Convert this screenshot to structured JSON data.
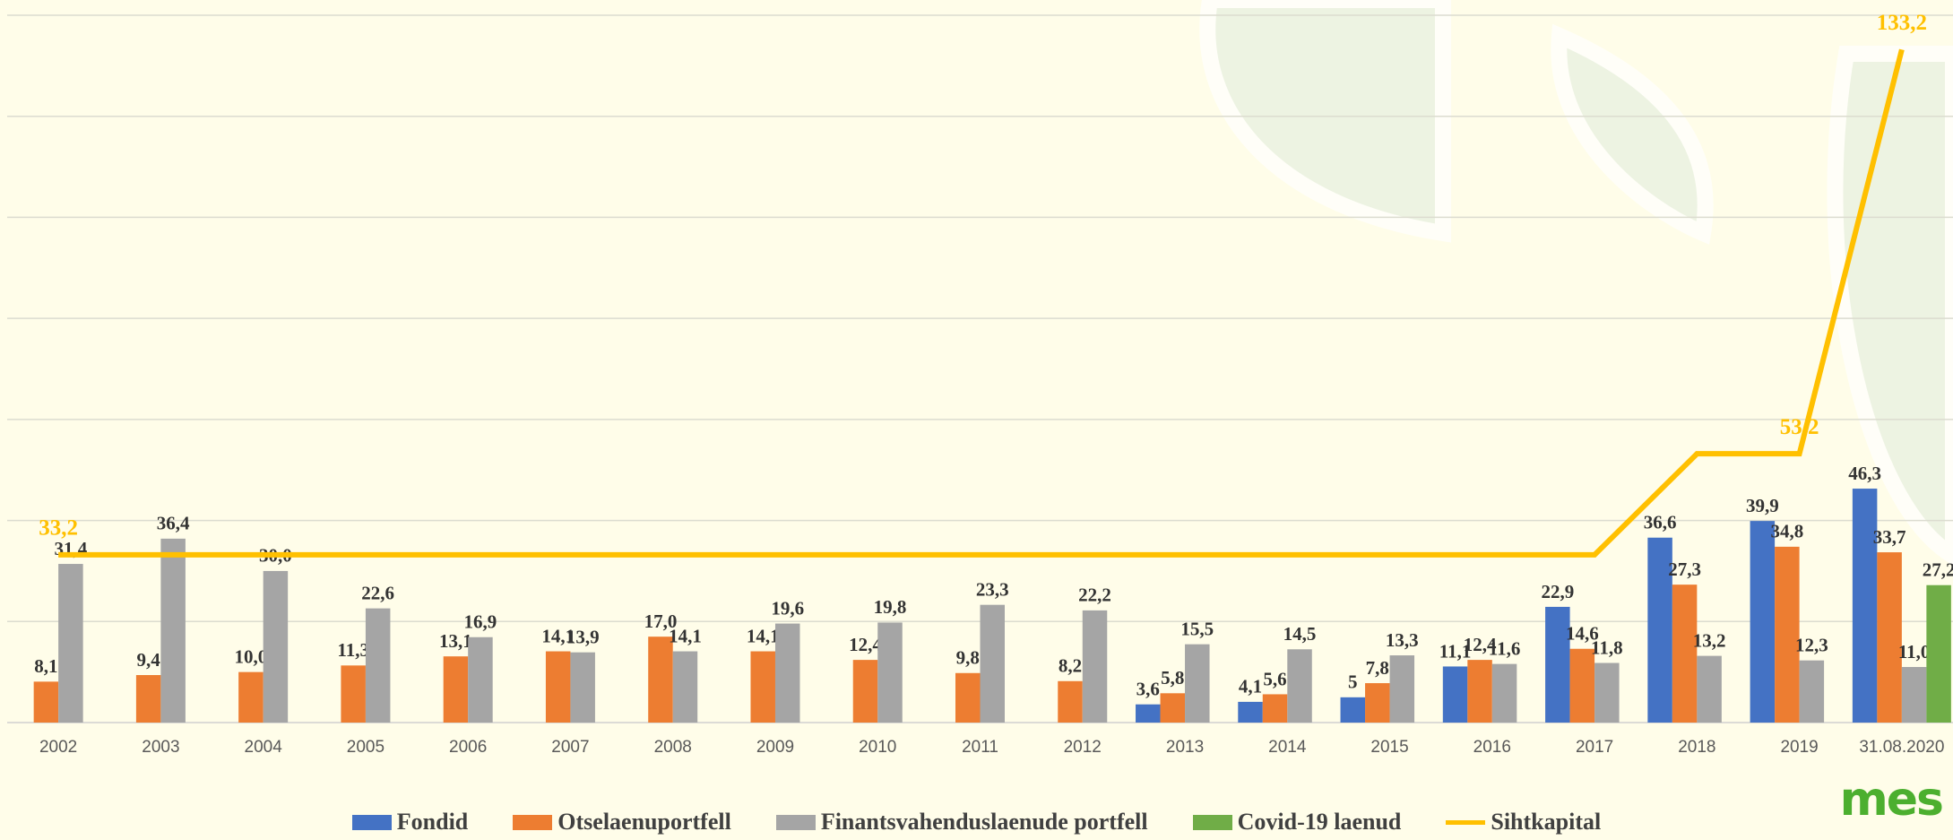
{
  "chart_data": {
    "type": "bar",
    "categories": [
      "2002",
      "2003",
      "2004",
      "2005",
      "2006",
      "2007",
      "2008",
      "2009",
      "2010",
      "2011",
      "2012",
      "2013",
      "2014",
      "2015",
      "2016",
      "2017",
      "2018",
      "2019",
      "31.08.2020"
    ],
    "series": [
      {
        "name": "Fondid",
        "color": "#4472c4",
        "type": "bar",
        "values": [
          null,
          null,
          null,
          null,
          null,
          null,
          null,
          null,
          null,
          null,
          null,
          3.6,
          4.1,
          5,
          11.1,
          22.9,
          36.6,
          39.9,
          46.3
        ],
        "value_labels": [
          null,
          null,
          null,
          null,
          null,
          null,
          null,
          null,
          null,
          null,
          null,
          "3,6",
          "4,1",
          "5",
          "11,1",
          "22,9",
          "36,6",
          "39,9",
          "46,3"
        ]
      },
      {
        "name": "Otselaenuportfell",
        "color": "#ed7d31",
        "type": "bar",
        "values": [
          8.1,
          9.4,
          10.0,
          11.3,
          13.1,
          14.1,
          17.0,
          14.1,
          12.4,
          9.8,
          8.2,
          5.8,
          5.6,
          7.8,
          12.4,
          14.6,
          27.3,
          34.8,
          33.7
        ],
        "value_labels": [
          "8,1",
          "9,4",
          "10,0",
          "11,3",
          "13,1",
          "14,1",
          "17,0",
          "14,1",
          "12,4",
          "9,8",
          "8,2",
          "5,8",
          "5,6",
          "7,8",
          "12,4",
          "14,6",
          "27,3",
          "34,8",
          "33,7"
        ]
      },
      {
        "name": "Finantsvahenduslaenude portfell",
        "color": "#a5a5a5",
        "type": "bar",
        "values": [
          31.4,
          36.4,
          30.0,
          22.6,
          16.9,
          13.9,
          14.1,
          19.6,
          19.8,
          23.3,
          22.2,
          15.5,
          14.5,
          13.3,
          11.6,
          11.8,
          13.2,
          12.3,
          11.0
        ],
        "value_labels": [
          "31,4",
          "36,4",
          "30,0",
          "22,6",
          "16,9",
          "13,9",
          "14,1",
          "19,6",
          "19,8",
          "23,3",
          "22,2",
          "15,5",
          "14,5",
          "13,3",
          "11,6",
          "11,8",
          "13,2",
          "12,3",
          "11,0"
        ]
      },
      {
        "name": "Covid-19 laenud",
        "color": "#70ad47",
        "type": "bar",
        "values": [
          null,
          null,
          null,
          null,
          null,
          null,
          null,
          null,
          null,
          null,
          null,
          null,
          null,
          null,
          null,
          null,
          null,
          null,
          27.2
        ],
        "value_labels": [
          null,
          null,
          null,
          null,
          null,
          null,
          null,
          null,
          null,
          null,
          null,
          null,
          null,
          null,
          null,
          null,
          null,
          null,
          "27,2"
        ]
      },
      {
        "name": "Sihtkapital",
        "color": "#ffc000",
        "type": "line",
        "values": [
          33.2,
          33.2,
          33.2,
          33.2,
          33.2,
          33.2,
          33.2,
          33.2,
          33.2,
          33.2,
          33.2,
          33.2,
          33.2,
          33.2,
          33.2,
          33.2,
          53.2,
          53.2,
          133.2
        ],
        "value_labels": [
          "33,2",
          null,
          null,
          null,
          null,
          null,
          null,
          null,
          null,
          null,
          null,
          null,
          null,
          null,
          null,
          null,
          null,
          "53,2",
          "133,2"
        ]
      }
    ],
    "ylim": [
      0,
      140
    ],
    "yticks": [
      0,
      20,
      40,
      60,
      80,
      100,
      120,
      140
    ],
    "grid": true
  },
  "logo": "mes"
}
